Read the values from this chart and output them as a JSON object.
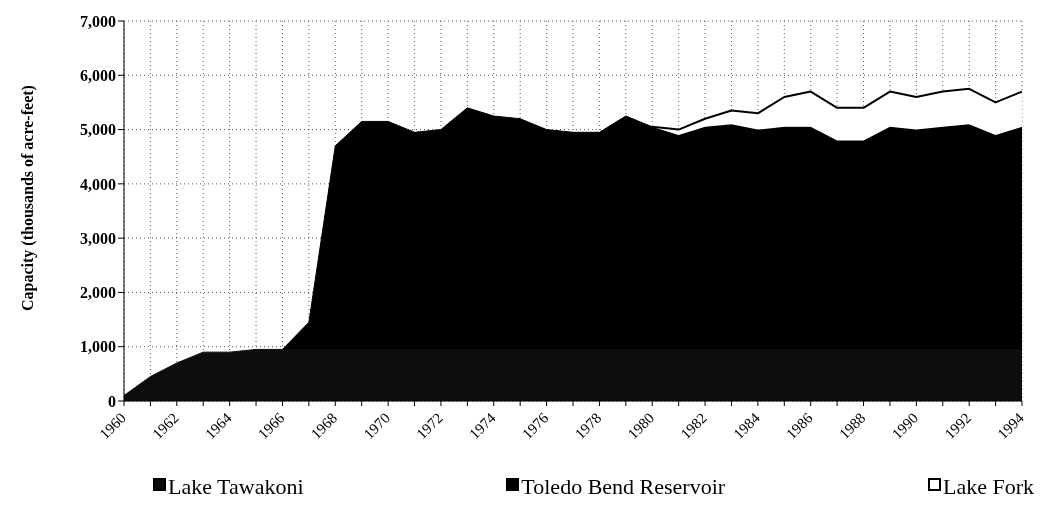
{
  "chart_data": {
    "type": "area",
    "stacked": true,
    "ylabel": "Capacity (thousands of acre-feet)",
    "x": [
      1960,
      1961,
      1962,
      1963,
      1964,
      1965,
      1966,
      1967,
      1968,
      1969,
      1970,
      1971,
      1972,
      1973,
      1974,
      1975,
      1976,
      1977,
      1978,
      1979,
      1980,
      1981,
      1982,
      1983,
      1984,
      1985,
      1986,
      1987,
      1988,
      1989,
      1990,
      1991,
      1992,
      1993,
      1994
    ],
    "series": [
      {
        "name": "Lake Tawakoni",
        "color": "#0d0d0d",
        "values": [
          100,
          450,
          700,
          900,
          900,
          950,
          950,
          950,
          950,
          950,
          950,
          950,
          950,
          950,
          950,
          950,
          950,
          950,
          950,
          950,
          950,
          950,
          950,
          950,
          950,
          950,
          950,
          950,
          950,
          950,
          950,
          950,
          950,
          950,
          950
        ]
      },
      {
        "name": "Toledo Bend Reservoir",
        "color": "#000000",
        "values": [
          null,
          null,
          null,
          null,
          null,
          null,
          0,
          500,
          3750,
          4200,
          4200,
          4000,
          4050,
          4450,
          4300,
          4250,
          4050,
          4000,
          4000,
          4300,
          4100,
          3950,
          4100,
          4150,
          4050,
          4100,
          4100,
          3850,
          3850,
          4100,
          4050,
          4100,
          4150,
          3950,
          4100
        ]
      },
      {
        "name": "Lake Fork",
        "color": "#ffffff",
        "values": [
          null,
          null,
          null,
          null,
          null,
          null,
          null,
          null,
          null,
          null,
          null,
          null,
          null,
          null,
          null,
          null,
          null,
          null,
          null,
          null,
          0,
          100,
          150,
          250,
          300,
          550,
          650,
          600,
          600,
          650,
          600,
          650,
          650,
          600,
          650
        ]
      }
    ],
    "xlim": [
      1960,
      1994
    ],
    "xticks": [
      1960,
      {
        "value": 1961,
        "label": null
      },
      1962,
      {
        "value": 1963,
        "label": null
      },
      1964,
      {
        "value": 1965,
        "label": null
      },
      1966,
      {
        "value": 1967,
        "label": null
      },
      1968,
      {
        "value": 1969,
        "label": null
      },
      1970,
      {
        "value": 1971,
        "label": null
      },
      1972,
      {
        "value": 1973,
        "label": null
      },
      1974,
      {
        "value": 1975,
        "label": null
      },
      1976,
      {
        "value": 1977,
        "label": null
      },
      1978,
      {
        "value": 1979,
        "label": null
      },
      1980,
      {
        "value": 1981,
        "label": null
      },
      1982,
      {
        "value": 1983,
        "label": null
      },
      1984,
      {
        "value": 1985,
        "label": null
      },
      1986,
      {
        "value": 1987,
        "label": null
      },
      1988,
      {
        "value": 1989,
        "label": null
      },
      1990,
      {
        "value": 1991,
        "label": null
      },
      1992,
      {
        "value": 1993,
        "label": null
      },
      1994
    ],
    "ylim": [
      0,
      7000
    ],
    "yticks": [
      0,
      {
        "value": 1000,
        "label": "1,000"
      },
      {
        "value": 2000,
        "label": "2,000"
      },
      {
        "value": 3000,
        "label": "3,000"
      },
      {
        "value": 4000,
        "label": "4,000"
      },
      {
        "value": 5000,
        "label": "5,000"
      },
      {
        "value": 6000,
        "label": "6,000"
      },
      {
        "value": 7000,
        "label": "7,000"
      }
    ],
    "grid": true,
    "legend": "bottom"
  }
}
